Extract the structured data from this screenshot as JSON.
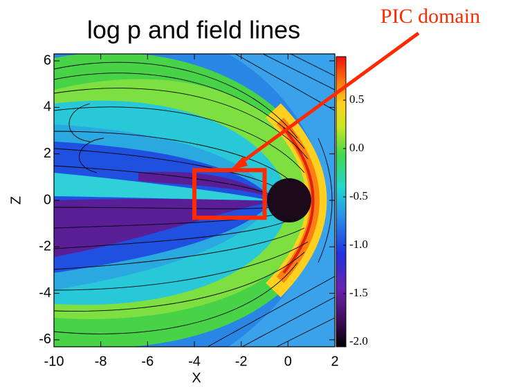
{
  "chart_data": {
    "type": "heatmap",
    "title": "log p and field lines",
    "xlabel": "X",
    "ylabel": "Z",
    "xlim": [
      -10,
      2
    ],
    "ylim": [
      -6.3,
      6.3
    ],
    "xticks": [
      -10,
      -8,
      -6,
      -4,
      -2,
      0,
      2
    ],
    "yticks": [
      -6,
      -4,
      -2,
      0,
      2,
      4,
      6
    ],
    "clim": [
      -2.05,
      0.95
    ],
    "cticks": [
      0.5,
      {
        "value": 0,
        "label": "0.0"
      },
      -0.5,
      {
        "value": -1,
        "label": "-1.0"
      },
      -1.5,
      {
        "value": -2,
        "label": "-2.0"
      }
    ],
    "annotation": "PIC domain",
    "annotation_color": "#ff2a00",
    "pic_box": {
      "x": [
        -4,
        -1
      ],
      "z": [
        -0.75,
        1.3
      ]
    }
  }
}
